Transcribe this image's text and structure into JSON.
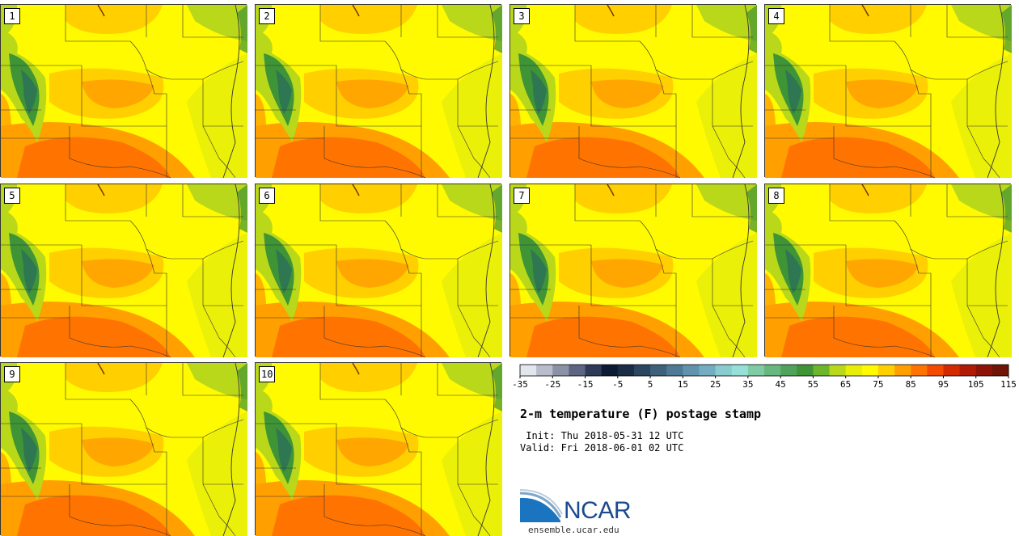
{
  "product": {
    "title": "2-m temperature (F) postage stamp",
    "init": " Init: Thu 2018-05-31 12 UTC",
    "valid": "Valid: Fri 2018-06-01 02 UTC"
  },
  "members": [
    "1",
    "2",
    "3",
    "4",
    "5",
    "6",
    "7",
    "8",
    "9",
    "10"
  ],
  "colorbar": {
    "ticks": [
      "-35",
      "-25",
      "-15",
      "-5",
      "5",
      "15",
      "25",
      "35",
      "45",
      "55",
      "65",
      "75",
      "85",
      "95",
      "105",
      "115"
    ],
    "colors": [
      "#e4e6ee",
      "#b9bdcb",
      "#8c92a6",
      "#5d6582",
      "#2f3a58",
      "#0d1a33",
      "#1b2c45",
      "#2c4660",
      "#3e607b",
      "#4f7a95",
      "#6193ad",
      "#74acc1",
      "#8acbd0",
      "#95e0d8",
      "#7fcca4",
      "#67b77e",
      "#4fa35a",
      "#3f9436",
      "#6db52a",
      "#b9d81a",
      "#e8ee08",
      "#fffa00",
      "#ffcf00",
      "#ffa000",
      "#ff7400",
      "#f34a00",
      "#d42a00",
      "#b11a05",
      "#8e1407",
      "#6f1608"
    ]
  },
  "logo": {
    "name": "NCAR",
    "url": "ensemble.ucar.edu"
  },
  "colors": {
    "hot": "#ff7400",
    "warm": "#ffa000",
    "mild": "#ffcf00",
    "yellow": "#fffa00",
    "lime": "#e8ee08",
    "green": "#b9d81a",
    "mtn": "#3f9436",
    "deep": "#2c6e5a"
  }
}
